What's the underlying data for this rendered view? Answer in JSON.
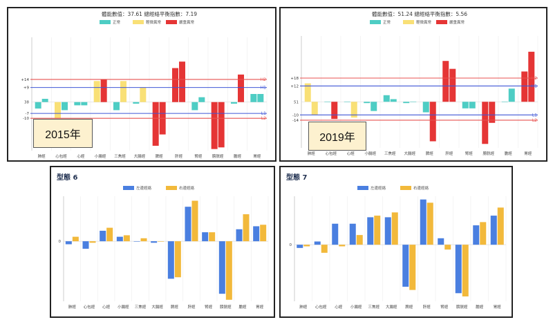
{
  "chart_data": [
    {
      "type": "bar",
      "panel": "2015",
      "title": "體能數值：37.61 總經絡平衡指數：7.19",
      "year_label": "2015年",
      "categories": [
        "肺經",
        "心包經",
        "心經",
        "小腸經",
        "三焦經",
        "大腸經",
        "脾經",
        "肝經",
        "腎經",
        "膀胱經",
        "膽經",
        "胃經"
      ],
      "ylim": [
        -30,
        40
      ],
      "ref_lines": [
        {
          "value": 14,
          "label": "H2",
          "tick": "+14",
          "color": "#e8514f"
        },
        {
          "value": 9,
          "label": "H1",
          "tick": "+9",
          "color": "#3f56d6"
        },
        {
          "value": -7,
          "label": "L1",
          "tick": "-7",
          "color": "#3f56d6"
        },
        {
          "value": -10,
          "label": "L2",
          "tick": "-10",
          "color": "#e8514f"
        }
      ],
      "baseline_tick": "38",
      "legend": [
        {
          "name": "正常",
          "color": "#4ecdc4"
        },
        {
          "name": "輕微異常",
          "color": "#f9e076"
        },
        {
          "name": "嚴重異常",
          "color": "#e53535"
        }
      ],
      "series": [
        {
          "name": "left",
          "values": [
            -4,
            -10,
            -2,
            13,
            -5,
            -1,
            -27,
            21,
            -5,
            -29,
            -1,
            5
          ],
          "colors": [
            "#4ecdc4",
            "#f9e076",
            "#4ecdc4",
            "#f9e076",
            "#4ecdc4",
            "#4ecdc4",
            "#e53535",
            "#e53535",
            "#4ecdc4",
            "#e53535",
            "#4ecdc4",
            "#4ecdc4"
          ]
        },
        {
          "name": "right",
          "values": [
            2,
            -5,
            -2,
            14,
            13,
            9,
            -20,
            25,
            3,
            -28,
            17,
            5
          ],
          "colors": [
            "#4ecdc4",
            "#4ecdc4",
            "#4ecdc4",
            "#e53535",
            "#f9e076",
            "#f9e076",
            "#e53535",
            "#e53535",
            "#4ecdc4",
            "#e53535",
            "#e53535",
            "#4ecdc4"
          ]
        }
      ]
    },
    {
      "type": "bar",
      "panel": "2019",
      "title": "體能數值：51.24 總經絡平衡指數：5.56",
      "year_label": "2019年",
      "categories": [
        "肺經",
        "心包經",
        "心經",
        "小腸經",
        "三焦經",
        "大腸經",
        "脾經",
        "肝經",
        "腎經",
        "膀胱經",
        "膽經",
        "胃經"
      ],
      "ylim": [
        -35,
        50
      ],
      "ref_lines": [
        {
          "value": 18,
          "label": "H2",
          "tick": "+18",
          "color": "#e8514f"
        },
        {
          "value": 12,
          "label": "H1",
          "tick": "+12",
          "color": "#3f56d6"
        },
        {
          "value": -10,
          "label": "L1",
          "tick": "-10",
          "color": "#3f56d6"
        },
        {
          "value": -14,
          "label": "L2",
          "tick": "-14",
          "color": "#e8514f"
        }
      ],
      "baseline_tick": "51",
      "legend": [
        {
          "name": "正常",
          "color": "#4ecdc4"
        },
        {
          "name": "輕微異常",
          "color": "#f9e076"
        },
        {
          "name": "嚴重異常",
          "color": "#e53535"
        }
      ],
      "series": [
        {
          "name": "left",
          "values": [
            14,
            0,
            0,
            -1,
            5,
            -1,
            -8,
            31,
            -5,
            -32,
            0,
            23
          ],
          "colors": [
            "#f9e076",
            "#4ecdc4",
            "#4ecdc4",
            "#4ecdc4",
            "#4ecdc4",
            "#4ecdc4",
            "#4ecdc4",
            "#e53535",
            "#4ecdc4",
            "#e53535",
            "#4ecdc4",
            "#e53535"
          ]
        },
        {
          "name": "right",
          "values": [
            -10,
            -13,
            -12,
            -7,
            2,
            0,
            -30,
            25,
            -5,
            -16,
            10,
            38
          ],
          "colors": [
            "#f9e076",
            "#e53535",
            "#f9e076",
            "#4ecdc4",
            "#4ecdc4",
            "#4ecdc4",
            "#e53535",
            "#e53535",
            "#4ecdc4",
            "#e53535",
            "#4ecdc4",
            "#e53535"
          ]
        }
      ]
    },
    {
      "type": "bar",
      "panel": "type6",
      "title": "型態 6",
      "categories": [
        "肺經",
        "心包經",
        "心經",
        "小腸經",
        "三焦經",
        "大腸經",
        "脾經",
        "肝經",
        "腎經",
        "膀胱經",
        "膽經",
        "胃經"
      ],
      "ylim": [
        -40,
        30
      ],
      "zero_tick": "0",
      "series": [
        {
          "name": "左邊經絡",
          "color": "#4a7fe0",
          "values": [
            -2,
            -5,
            7,
            3,
            0,
            -1,
            -25,
            23,
            6,
            -35,
            8,
            10
          ]
        },
        {
          "name": "右邊經絡",
          "color": "#f2b93b",
          "values": [
            3,
            -1,
            9,
            4,
            2,
            0,
            -24,
            27,
            6,
            -39,
            18,
            11
          ]
        }
      ]
    },
    {
      "type": "bar",
      "panel": "type7",
      "title": "型態 7",
      "categories": [
        "肺經",
        "心包經",
        "心經",
        "小腸經",
        "三焦經",
        "大腸經",
        "脾經",
        "肝經",
        "腎經",
        "膀胱經",
        "膽經",
        "胃經"
      ],
      "ylim": [
        -35,
        30
      ],
      "zero_tick": "0",
      "series": [
        {
          "name": "左邊經絡",
          "color": "#4a7fe0",
          "values": [
            -2,
            2,
            13,
            13,
            17,
            17,
            -26,
            28,
            4,
            -30,
            12,
            18
          ]
        },
        {
          "name": "右邊經絡",
          "color": "#f2b93b",
          "values": [
            -1,
            -5,
            -1,
            6,
            18,
            20,
            -28,
            26,
            -3,
            -32,
            14,
            23
          ]
        }
      ]
    }
  ]
}
